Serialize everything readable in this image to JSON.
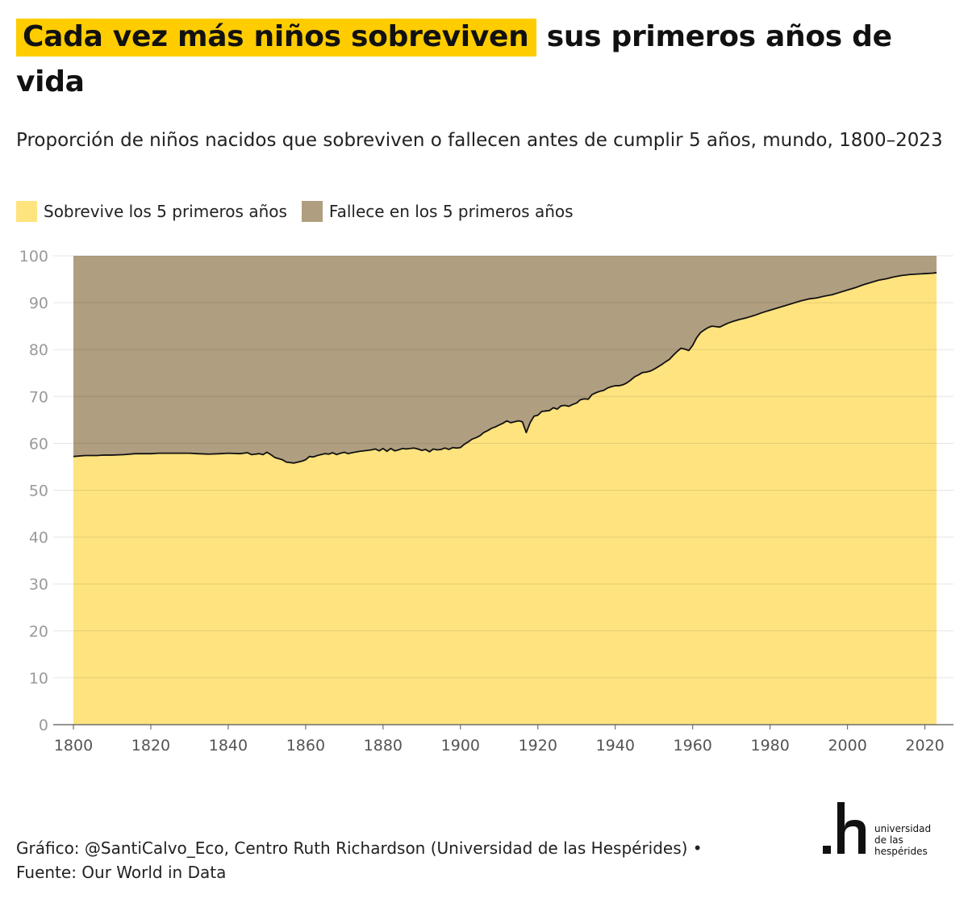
{
  "header": {
    "title_highlight": "Cada vez más niños sobreviven",
    "title_rest": "sus primeros años de vida",
    "subtitle": "Proporción de niños nacidos que sobreviven o fallecen antes de cumplir 5 años, mundo, 1800–2023"
  },
  "colors": {
    "highlight": "#FFCC00",
    "survive": "#FFE37F",
    "die": "#B09E80",
    "line": "#111111"
  },
  "footer": {
    "line1": "Gráfico: @SantiCalvo_Eco, Centro Ruth Richardson (Universidad de las Hespérides) •",
    "line2": "Fuente: Our World in Data"
  },
  "logo": {
    "mark": ".h",
    "line1": "universidad",
    "line2": "de las",
    "line3": "hespérides"
  },
  "chart_data": {
    "type": "area",
    "stacked": true,
    "grid": true,
    "legend_position": "top-left",
    "xlim": [
      1800,
      2023
    ],
    "ylim": [
      0,
      100
    ],
    "xticks": [
      1800,
      1820,
      1840,
      1860,
      1880,
      1900,
      1920,
      1940,
      1960,
      1980,
      2000,
      2020
    ],
    "yticks": [
      0,
      10,
      20,
      30,
      40,
      50,
      60,
      70,
      80,
      90,
      100
    ],
    "series": [
      {
        "name": "Sobrevive los 5 primeros años",
        "color": "#FFE37F"
      },
      {
        "name": "Fallece en los 5 primeros años",
        "color": "#B09E80"
      }
    ],
    "survival_points": [
      [
        1800,
        57.2
      ],
      [
        1803,
        57.4
      ],
      [
        1806,
        57.4
      ],
      [
        1808,
        57.5
      ],
      [
        1810,
        57.5
      ],
      [
        1813,
        57.6
      ],
      [
        1816,
        57.8
      ],
      [
        1820,
        57.8
      ],
      [
        1822,
        57.9
      ],
      [
        1825,
        57.9
      ],
      [
        1830,
        57.9
      ],
      [
        1832,
        57.8
      ],
      [
        1835,
        57.7
      ],
      [
        1838,
        57.8
      ],
      [
        1840,
        57.9
      ],
      [
        1843,
        57.8
      ],
      [
        1845,
        58.0
      ],
      [
        1846,
        57.6
      ],
      [
        1848,
        57.8
      ],
      [
        1849,
        57.6
      ],
      [
        1850,
        58.1
      ],
      [
        1851,
        57.6
      ],
      [
        1852,
        57.0
      ],
      [
        1854,
        56.5
      ],
      [
        1855,
        56.0
      ],
      [
        1857,
        55.8
      ],
      [
        1858,
        56.0
      ],
      [
        1859,
        56.2
      ],
      [
        1860,
        56.5
      ],
      [
        1861,
        57.2
      ],
      [
        1862,
        57.1
      ],
      [
        1863,
        57.4
      ],
      [
        1865,
        57.8
      ],
      [
        1866,
        57.7
      ],
      [
        1867,
        58.0
      ],
      [
        1868,
        57.6
      ],
      [
        1869,
        57.9
      ],
      [
        1870,
        58.1
      ],
      [
        1871,
        57.8
      ],
      [
        1872,
        58.0
      ],
      [
        1874,
        58.3
      ],
      [
        1876,
        58.5
      ],
      [
        1877,
        58.6
      ],
      [
        1878,
        58.8
      ],
      [
        1879,
        58.4
      ],
      [
        1880,
        58.9
      ],
      [
        1881,
        58.3
      ],
      [
        1882,
        58.9
      ],
      [
        1883,
        58.4
      ],
      [
        1884,
        58.6
      ],
      [
        1885,
        58.9
      ],
      [
        1886,
        58.8
      ],
      [
        1887,
        58.9
      ],
      [
        1888,
        59.0
      ],
      [
        1889,
        58.8
      ],
      [
        1890,
        58.5
      ],
      [
        1891,
        58.7
      ],
      [
        1892,
        58.2
      ],
      [
        1893,
        58.8
      ],
      [
        1894,
        58.6
      ],
      [
        1895,
        58.7
      ],
      [
        1896,
        59.0
      ],
      [
        1897,
        58.7
      ],
      [
        1898,
        59.1
      ],
      [
        1899,
        59.0
      ],
      [
        1900,
        59.1
      ],
      [
        1901,
        59.8
      ],
      [
        1902,
        60.3
      ],
      [
        1903,
        60.9
      ],
      [
        1904,
        61.2
      ],
      [
        1905,
        61.6
      ],
      [
        1906,
        62.3
      ],
      [
        1907,
        62.7
      ],
      [
        1908,
        63.2
      ],
      [
        1909,
        63.5
      ],
      [
        1910,
        63.9
      ],
      [
        1911,
        64.3
      ],
      [
        1912,
        64.8
      ],
      [
        1913,
        64.4
      ],
      [
        1914,
        64.6
      ],
      [
        1915,
        64.8
      ],
      [
        1916,
        64.6
      ],
      [
        1917,
        62.3
      ],
      [
        1918,
        64.4
      ],
      [
        1919,
        65.8
      ],
      [
        1920,
        66.0
      ],
      [
        1921,
        66.8
      ],
      [
        1922,
        66.9
      ],
      [
        1923,
        67.0
      ],
      [
        1924,
        67.6
      ],
      [
        1925,
        67.3
      ],
      [
        1926,
        68.0
      ],
      [
        1927,
        68.1
      ],
      [
        1928,
        67.9
      ],
      [
        1929,
        68.3
      ],
      [
        1930,
        68.6
      ],
      [
        1931,
        69.3
      ],
      [
        1932,
        69.5
      ],
      [
        1933,
        69.4
      ],
      [
        1934,
        70.4
      ],
      [
        1935,
        70.8
      ],
      [
        1936,
        71.1
      ],
      [
        1937,
        71.3
      ],
      [
        1938,
        71.8
      ],
      [
        1939,
        72.1
      ],
      [
        1940,
        72.3
      ],
      [
        1941,
        72.3
      ],
      [
        1942,
        72.5
      ],
      [
        1943,
        72.9
      ],
      [
        1944,
        73.5
      ],
      [
        1945,
        74.2
      ],
      [
        1946,
        74.6
      ],
      [
        1947,
        75.1
      ],
      [
        1948,
        75.2
      ],
      [
        1949,
        75.4
      ],
      [
        1950,
        75.8
      ],
      [
        1951,
        76.3
      ],
      [
        1952,
        76.8
      ],
      [
        1953,
        77.4
      ],
      [
        1954,
        77.9
      ],
      [
        1955,
        78.8
      ],
      [
        1956,
        79.6
      ],
      [
        1957,
        80.3
      ],
      [
        1958,
        80.1
      ],
      [
        1959,
        79.8
      ],
      [
        1960,
        80.9
      ],
      [
        1961,
        82.5
      ],
      [
        1962,
        83.6
      ],
      [
        1963,
        84.2
      ],
      [
        1964,
        84.7
      ],
      [
        1965,
        85.0
      ],
      [
        1966,
        84.9
      ],
      [
        1967,
        84.8
      ],
      [
        1968,
        85.2
      ],
      [
        1969,
        85.6
      ],
      [
        1970,
        85.9
      ],
      [
        1972,
        86.4
      ],
      [
        1974,
        86.8
      ],
      [
        1976,
        87.3
      ],
      [
        1978,
        87.9
      ],
      [
        1980,
        88.4
      ],
      [
        1982,
        88.9
      ],
      [
        1984,
        89.4
      ],
      [
        1986,
        89.9
      ],
      [
        1988,
        90.4
      ],
      [
        1990,
        90.8
      ],
      [
        1992,
        91.0
      ],
      [
        1994,
        91.4
      ],
      [
        1996,
        91.7
      ],
      [
        1998,
        92.2
      ],
      [
        2000,
        92.7
      ],
      [
        2002,
        93.2
      ],
      [
        2004,
        93.8
      ],
      [
        2006,
        94.3
      ],
      [
        2008,
        94.8
      ],
      [
        2010,
        95.1
      ],
      [
        2012,
        95.5
      ],
      [
        2014,
        95.8
      ],
      [
        2016,
        96.0
      ],
      [
        2018,
        96.1
      ],
      [
        2020,
        96.2
      ],
      [
        2022,
        96.3
      ],
      [
        2023,
        96.4
      ]
    ]
  }
}
